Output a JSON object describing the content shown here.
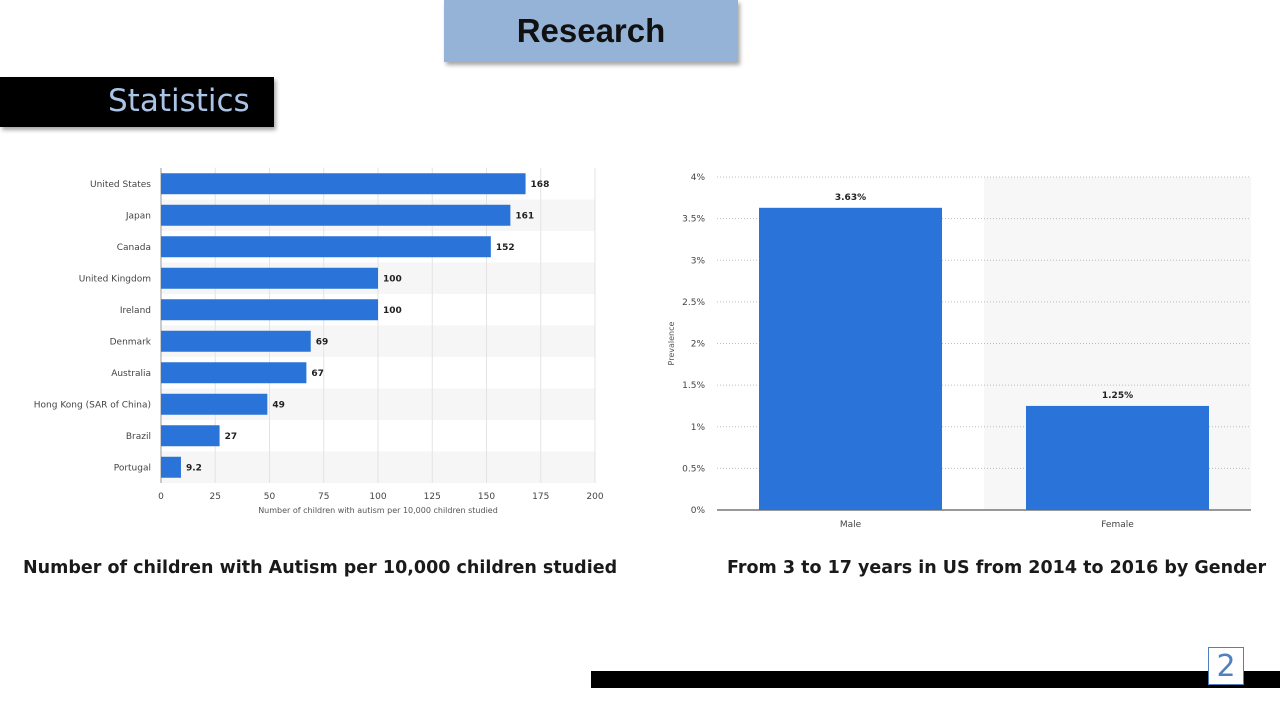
{
  "slide": {
    "title": "Research",
    "section": "Statistics",
    "page_number": "2"
  },
  "captions": {
    "left": "Number of children with Autism per 10,000 children studied",
    "right": "From 3 to 17 years in US from 2014 to 2016 by Gender"
  },
  "chart_data": [
    {
      "type": "bar",
      "orientation": "horizontal",
      "title": "",
      "categories": [
        "United States",
        "Japan",
        "Canada",
        "United Kingdom",
        "Ireland",
        "Denmark",
        "Australia",
        "Hong Kong (SAR of China)",
        "Brazil",
        "Portugal"
      ],
      "values": [
        168,
        161,
        152,
        100,
        100,
        69,
        67,
        49,
        27,
        9.2
      ],
      "value_labels": [
        "168",
        "161",
        "152",
        "100",
        "100",
        "69",
        "67",
        "49",
        "27",
        "9.2"
      ],
      "xlabel": "Number of children with autism per 10,000 children studied",
      "ylabel": "",
      "xlim": [
        0,
        200
      ],
      "xticks": [
        "0",
        "25",
        "50",
        "75",
        "100",
        "125",
        "150",
        "175",
        "200"
      ],
      "grid": "vertical",
      "bar_color": "#2a74d9"
    },
    {
      "type": "bar",
      "orientation": "vertical",
      "title": "",
      "categories": [
        "Male",
        "Female"
      ],
      "values": [
        3.63,
        1.25
      ],
      "value_labels": [
        "3.63%",
        "1.25%"
      ],
      "xlabel": "",
      "ylabel": "Prevalence",
      "ylim": [
        0,
        4
      ],
      "yticks": [
        "0%",
        "0.5%",
        "1%",
        "1.5%",
        "2%",
        "2.5%",
        "3%",
        "3.5%",
        "4%"
      ],
      "grid": "horizontal-dotted",
      "bar_color": "#2a74d9"
    }
  ]
}
